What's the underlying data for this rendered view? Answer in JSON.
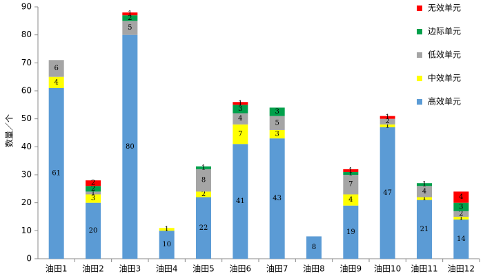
{
  "chart_data": {
    "type": "stacked_bar",
    "y_label": "数量／个",
    "categories": [
      "油田1",
      "油田2",
      "油田3",
      "油田4",
      "油田5",
      "油田6",
      "油田7",
      "油田8",
      "油田9",
      "油田10",
      "油田11",
      "油田12"
    ],
    "series": [
      {
        "name": "高效单元",
        "color": "#5b9bd5",
        "values": [
          61,
          20,
          80,
          10,
          22,
          41,
          43,
          8,
          19,
          47,
          21,
          14
        ]
      },
      {
        "name": "中效单元",
        "color": "#ffff00",
        "values": [
          4,
          3,
          null,
          1,
          2,
          7,
          3,
          null,
          4,
          1,
          1,
          1
        ]
      },
      {
        "name": "低效单元",
        "color": "#a5a5a5",
        "values": [
          6,
          1,
          5,
          null,
          8,
          4,
          5,
          null,
          7,
          2,
          4,
          2
        ]
      },
      {
        "name": "边际单元",
        "color": "#00a04b",
        "values": [
          null,
          2,
          2,
          null,
          1,
          3,
          3,
          null,
          1,
          null,
          1,
          3
        ]
      },
      {
        "name": "无效单元",
        "color": "#ff0000",
        "values": [
          null,
          2,
          1,
          null,
          null,
          1,
          null,
          null,
          1,
          1,
          null,
          4
        ]
      }
    ],
    "ylim": [
      0,
      90
    ],
    "yticks": [
      0,
      10,
      20,
      30,
      40,
      50,
      60,
      70,
      80,
      90
    ],
    "grid": false,
    "legend": "top-right"
  }
}
